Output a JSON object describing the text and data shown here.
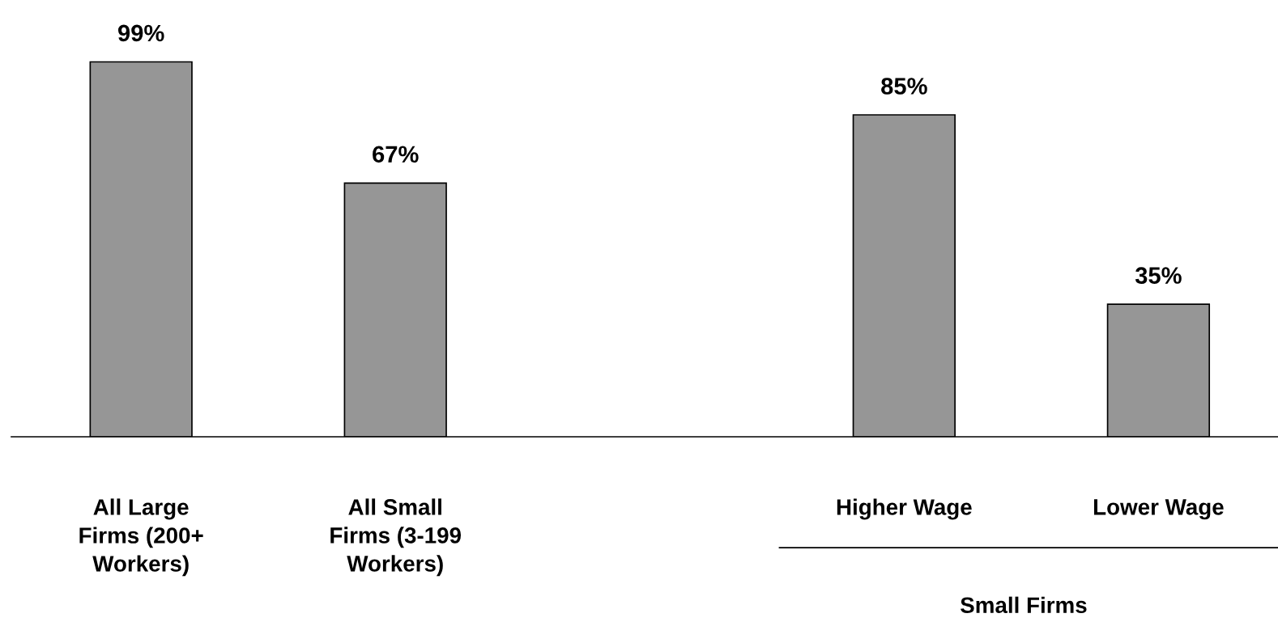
{
  "chart_data": {
    "type": "bar",
    "categories": [
      "All Large\nFirms (200+\nWorkers)",
      "All Small\nFirms (3-199\nWorkers)",
      null,
      "Higher Wage",
      "Lower Wage"
    ],
    "values": [
      99,
      67,
      null,
      85,
      35
    ],
    "color": "#969696",
    "value_labels": [
      "99%",
      "67%",
      null,
      "85%",
      "35%"
    ],
    "grid": false,
    "legend": false,
    "annotations": [
      "Small Firms"
    ]
  }
}
